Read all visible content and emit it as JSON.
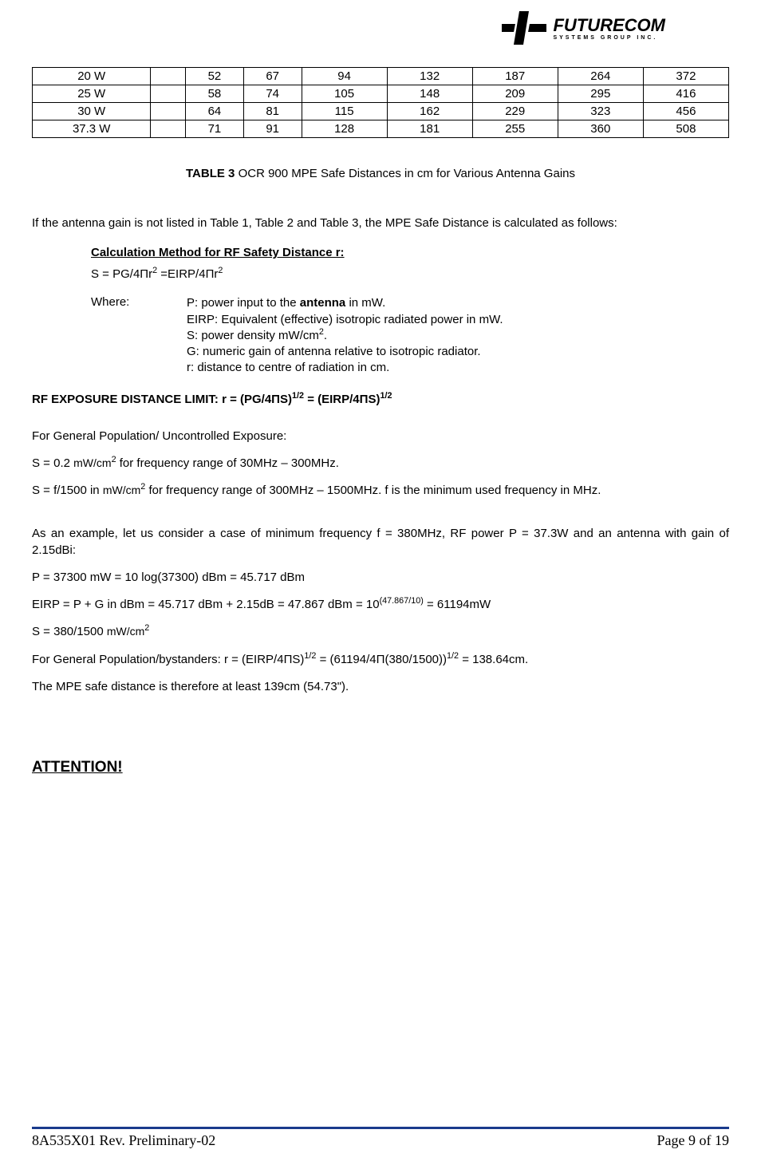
{
  "logo": {
    "company": "FUTURECOM",
    "tagline": "SYSTEMS GROUP INC."
  },
  "table": {
    "rows": [
      [
        "20 W",
        "",
        "52",
        "67",
        "94",
        "132",
        "187",
        "264",
        "372"
      ],
      [
        "25 W",
        "",
        "58",
        "74",
        "105",
        "148",
        "209",
        "295",
        "416"
      ],
      [
        "30 W",
        "",
        "64",
        "81",
        "115",
        "162",
        "229",
        "323",
        "456"
      ],
      [
        "37.3 W",
        "",
        "71",
        "91",
        "128",
        "181",
        "255",
        "360",
        "508"
      ]
    ],
    "caption_label": "TABLE 3",
    "caption_text": "  OCR 900 MPE Safe Distances in cm for Various Antenna Gains"
  },
  "intro": "If the antenna gain is not listed in Table 1, Table 2 and Table 3, the MPE Safe Distance is calculated as follows:",
  "calc": {
    "heading": "Calculation Method for RF Safety Distance r",
    "formula_plain": "S = PG/4Πr",
    "formula_mid": " =EIRP/4Πr",
    "where_label": "Where:",
    "defs": {
      "p_pre": "P: power input to the ",
      "p_bold": "antenna",
      "p_post": " in mW.",
      "eirp": "EIRP: Equivalent (effective) isotropic radiated power in mW.",
      "s_pre": "S: power density mW/cm",
      "s_post": ".",
      "g": "G: numeric gain of antenna relative to isotropic radiator.",
      "r": "r: distance to centre of radiation in cm."
    }
  },
  "rf_limit": {
    "pre": "RF EXPOSURE DISTANCE LIMIT: r = (PG/4ΠS)",
    "mid": " = (EIRP/4ΠS)"
  },
  "general": {
    "heading": "For General Population/ Uncontrolled Exposure:",
    "s02_pre": "S = 0.2 ",
    "s02_unit": "mW/cm",
    "s02_post": " for frequency range of 30MHz – 300MHz.",
    "sf_pre": "S = f/1500 in ",
    "sf_unit": "mW/cm",
    "sf_post": " for frequency range of 300MHz – 1500MHz. f is the minimum used frequency in MHz."
  },
  "example": {
    "intro": "As an example, let us consider a case of minimum frequency f = 380MHz, RF power P = 37.3W and an antenna with gain of 2.15dBi:",
    "p_line": "P = 37300 mW = 10 log(37300) dBm = 45.717 dBm",
    "eirp_pre": "EIRP = P + G in dBm = 45.717 dBm + 2.15dB = 47.867 dBm = 10",
    "eirp_exp": "(47.867/10)",
    "eirp_post": " = 61194mW",
    "s_pre": "S = 380/1500 ",
    "s_unit": "mW/cm",
    "bystanders_pre": "For General Population/bystanders: r = (EIRP/4ΠS)",
    "bystanders_mid": " = (61194/4Π(380/1500))",
    "bystanders_post": " = 138.64cm.",
    "conclusion": "The MPE safe distance is therefore at least 139cm (54.73\")."
  },
  "attention": "ATTENTION!",
  "footer": {
    "left": "8A535X01 Rev. Preliminary-02",
    "right": "Page 9 of 19"
  }
}
